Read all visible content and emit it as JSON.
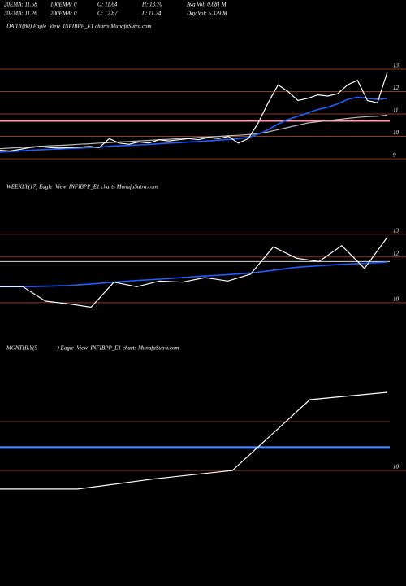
{
  "header": {
    "stats": [
      [
        "20EMA: 11.58",
        "100EMA: 0",
        "O: 11.64",
        "H: 13.70",
        "Avg Vol: 0.681 M"
      ],
      [
        "30EMA: 11.26",
        "200EMA: 0",
        "C: 12.87",
        "L: 11.24",
        "Day Vol: 5.329 M"
      ]
    ]
  },
  "chart_data": [
    {
      "type": "line",
      "title": "DAILY(80) Eagle  View  INFIBPP_E1 charts MunafaSutra.com",
      "ylim": [
        8.64,
        13.18
      ],
      "yticks": [
        9,
        10,
        11,
        12,
        13
      ],
      "grid": true,
      "hlines": [
        {
          "value": 10.7,
          "color": "#ff9fb4"
        }
      ],
      "series": [
        {
          "color": "#bbbbbb",
          "values": [
            9.45,
            9.48,
            9.5,
            9.53,
            9.55,
            9.58,
            9.6,
            9.62,
            9.65,
            9.67,
            9.7,
            9.72,
            9.75,
            9.77,
            9.8,
            9.82,
            9.85,
            9.87,
            9.9,
            9.92,
            9.95,
            9.97,
            10.0,
            10.03,
            10.05,
            10.08,
            10.12,
            10.2,
            10.3,
            10.4,
            10.5,
            10.6,
            10.65,
            10.7,
            10.75,
            10.8,
            10.85,
            10.88,
            10.9,
            10.95
          ]
        },
        {
          "color": "#1e5eff",
          "values": [
            9.3,
            9.32,
            9.35,
            9.38,
            9.4,
            9.42,
            9.44,
            9.46,
            9.48,
            9.5,
            9.52,
            9.56,
            9.58,
            9.6,
            9.62,
            9.64,
            9.67,
            9.7,
            9.72,
            9.75,
            9.77,
            9.8,
            9.83,
            9.86,
            9.9,
            9.95,
            10.1,
            10.3,
            10.55,
            10.75,
            10.9,
            11.05,
            11.2,
            11.3,
            11.45,
            11.65,
            11.75,
            11.7,
            11.65,
            11.7
          ]
        },
        {
          "color": "#ffffff",
          "values": [
            9.38,
            9.35,
            9.42,
            9.5,
            9.55,
            9.5,
            9.48,
            9.5,
            9.52,
            9.55,
            9.5,
            9.9,
            9.7,
            9.65,
            9.75,
            9.7,
            9.85,
            9.8,
            9.85,
            9.9,
            9.85,
            9.95,
            9.9,
            10.0,
            9.7,
            9.9,
            10.6,
            11.5,
            12.3,
            12.0,
            11.6,
            11.7,
            11.85,
            11.8,
            11.9,
            12.3,
            12.5,
            11.6,
            11.5,
            12.87
          ]
        }
      ]
    },
    {
      "type": "line",
      "title": "WEEKLY(17) Eagle  View  INFIBPP_E1 charts MunafaSutra.com",
      "ylim": [
        9,
        14.7
      ],
      "yticks": [
        10,
        12,
        13
      ],
      "grid": true,
      "hlines": [
        {
          "value": 11.8,
          "color": "#dddddd"
        }
      ],
      "series": [
        {
          "color": "#1e5eff",
          "values": [
            10.7,
            10.7,
            10.72,
            10.75,
            10.82,
            10.9,
            10.97,
            11.03,
            11.1,
            11.17,
            11.23,
            11.3,
            11.42,
            11.55,
            11.62,
            11.68,
            11.72,
            11.78
          ]
        },
        {
          "color": "#ffffff",
          "values": [
            10.7,
            10.7,
            10.07,
            9.95,
            9.8,
            10.9,
            10.7,
            10.95,
            10.9,
            11.1,
            10.95,
            11.25,
            12.45,
            11.95,
            11.8,
            12.5,
            11.5,
            12.87
          ]
        }
      ]
    },
    {
      "type": "line",
      "title": "MONTHLY(5              ) Eagle  View  INFIBPP_E1 charts MunafaSutra.com",
      "ylim": [
        7.97,
        12.3
      ],
      "yticks": [
        10
      ],
      "grid": true,
      "hlines": [
        {
          "value": 11,
          "color": "#8b3a1a"
        },
        {
          "value": 10.47,
          "color": "#4f8fff"
        }
      ],
      "series": [
        {
          "color": "#ffffff",
          "values": [
            9.62,
            9.62,
            9.83,
            10.0,
            11.45,
            11.6
          ]
        }
      ]
    }
  ]
}
